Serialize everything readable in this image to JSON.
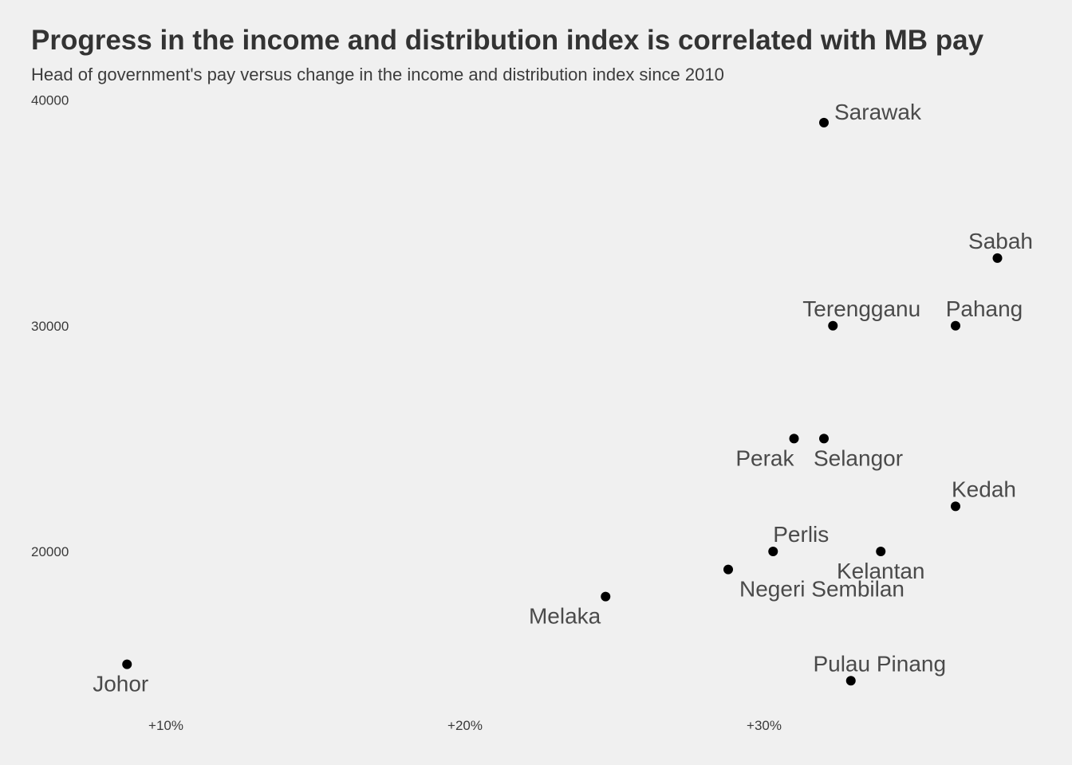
{
  "chart_data": {
    "type": "scatter",
    "title": "Progress in the income and distribution index is correlated with MB pay",
    "subtitle": "Head of government's pay versus change in the income and distribution index since 2010",
    "xlabel": "",
    "ylabel": "",
    "x_unit": "percent change",
    "xlim": [
      7.0,
      41.3
    ],
    "ylim": [
      13500,
      40500
    ],
    "x_ticks": [
      {
        "value": 10,
        "label": "+10%"
      },
      {
        "value": 20,
        "label": "+20%"
      },
      {
        "value": 30,
        "label": "+30%"
      }
    ],
    "y_ticks": [
      {
        "value": 20000,
        "label": "20000"
      },
      {
        "value": 30000,
        "label": "30000"
      },
      {
        "value": 40000,
        "label": "40000"
      }
    ],
    "grid": false,
    "legend": "none",
    "point_color": "#000000",
    "points": [
      {
        "label": "Sarawak",
        "x": 32.0,
        "y": 39000,
        "label_pos": "right"
      },
      {
        "label": "Sabah",
        "x": 37.8,
        "y": 33000,
        "label_pos": "above"
      },
      {
        "label": "Terengganu",
        "x": 32.3,
        "y": 30000,
        "label_pos": "above"
      },
      {
        "label": "Pahang",
        "x": 36.4,
        "y": 30000,
        "label_pos": "above"
      },
      {
        "label": "Perak",
        "x": 31.0,
        "y": 25000,
        "label_pos": "below-left"
      },
      {
        "label": "Selangor",
        "x": 32.0,
        "y": 25000,
        "label_pos": "below"
      },
      {
        "label": "Kedah",
        "x": 36.4,
        "y": 22000,
        "label_pos": "above"
      },
      {
        "label": "Perlis",
        "x": 30.3,
        "y": 20000,
        "label_pos": "above"
      },
      {
        "label": "Kelantan",
        "x": 33.9,
        "y": 20000,
        "label_pos": "below"
      },
      {
        "label": "Negeri Sembilan",
        "x": 28.8,
        "y": 19200,
        "label_pos": "below-left"
      },
      {
        "label": "Melaka",
        "x": 24.7,
        "y": 18000,
        "label_pos": "below-left"
      },
      {
        "label": "Pulau Pinang",
        "x": 32.9,
        "y": 14270,
        "label_pos": "above"
      },
      {
        "label": "Johor",
        "x": 8.7,
        "y": 15000,
        "label_pos": "below"
      }
    ]
  }
}
